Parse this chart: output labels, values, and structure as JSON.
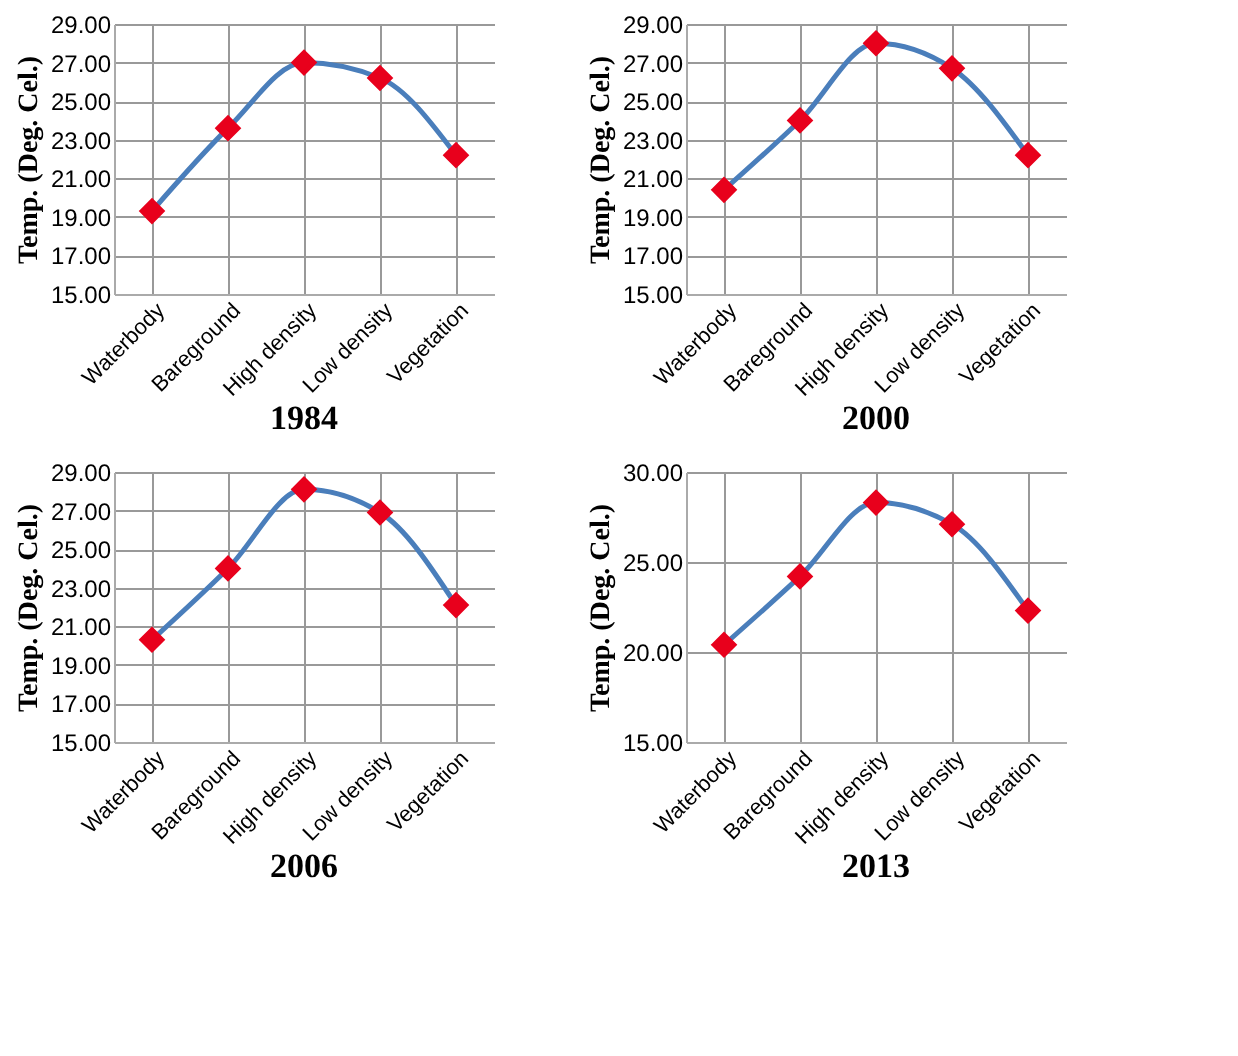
{
  "chart_data": [
    {
      "type": "line",
      "title": "1984",
      "ylabel": "Temp. (Deg. Cel.)",
      "categories": [
        "Waterbody",
        "Bareground",
        "High density",
        "Low density",
        "Vegetation"
      ],
      "series": [
        {
          "color": "#4a7ebb",
          "values": [
            19.3,
            23.6,
            27.0,
            26.2,
            22.2
          ]
        }
      ],
      "ylim": [
        15,
        29
      ],
      "yticks": [
        {
          "value": 15,
          "label": "15.00"
        },
        {
          "value": 17,
          "label": "17.00"
        },
        {
          "value": 19,
          "label": "19.00"
        },
        {
          "value": 21,
          "label": "21.00"
        },
        {
          "value": 23,
          "label": "23.00"
        },
        {
          "value": 25,
          "label": "25.00"
        },
        {
          "value": 27,
          "label": "27.00"
        },
        {
          "value": 29,
          "label": "29.00"
        }
      ],
      "grid": true,
      "marker": "diamond"
    },
    {
      "type": "line",
      "title": "2000",
      "ylabel": "Temp. (Deg. Cel.)",
      "categories": [
        "Waterbody",
        "Bareground",
        "High density",
        "Low density",
        "Vegetation"
      ],
      "series": [
        {
          "color": "#4a7ebb",
          "values": [
            20.4,
            24.0,
            28.0,
            26.7,
            22.2
          ]
        }
      ],
      "ylim": [
        15,
        29
      ],
      "yticks": [
        {
          "value": 15,
          "label": "15.00"
        },
        {
          "value": 17,
          "label": "17.00"
        },
        {
          "value": 19,
          "label": "19.00"
        },
        {
          "value": 21,
          "label": "21.00"
        },
        {
          "value": 23,
          "label": "23.00"
        },
        {
          "value": 25,
          "label": "25.00"
        },
        {
          "value": 27,
          "label": "27.00"
        },
        {
          "value": 29,
          "label": "29.00"
        }
      ],
      "grid": true,
      "marker": "diamond"
    },
    {
      "type": "line",
      "title": "2006",
      "ylabel": "Temp. (Deg. Cel.)",
      "categories": [
        "Waterbody",
        "Bareground",
        "High density",
        "Low density",
        "Vegetation"
      ],
      "series": [
        {
          "color": "#4a7ebb",
          "values": [
            20.3,
            24.0,
            28.1,
            26.9,
            22.1
          ]
        }
      ],
      "ylim": [
        15,
        29
      ],
      "yticks": [
        {
          "value": 15,
          "label": "15.00"
        },
        {
          "value": 17,
          "label": "17.00"
        },
        {
          "value": 19,
          "label": "19.00"
        },
        {
          "value": 21,
          "label": "21.00"
        },
        {
          "value": 23,
          "label": "23.00"
        },
        {
          "value": 25,
          "label": "25.00"
        },
        {
          "value": 27,
          "label": "27.00"
        },
        {
          "value": 29,
          "label": "29.00"
        }
      ],
      "grid": true,
      "marker": "diamond"
    },
    {
      "type": "line",
      "title": "2013",
      "ylabel": "Temp. (Deg. Cel.)",
      "categories": [
        "Waterbody",
        "Bareground",
        "High density",
        "Low density",
        "Vegetation"
      ],
      "series": [
        {
          "color": "#4a7ebb",
          "values": [
            20.4,
            24.2,
            28.3,
            27.1,
            22.3
          ]
        }
      ],
      "ylim": [
        15,
        30
      ],
      "yticks": [
        {
          "value": 15,
          "label": "15.00"
        },
        {
          "value": 20,
          "label": "20.00"
        },
        {
          "value": 25,
          "label": "25.00"
        },
        {
          "value": 30,
          "label": "30.00"
        }
      ],
      "grid": true,
      "marker": "diamond"
    }
  ]
}
